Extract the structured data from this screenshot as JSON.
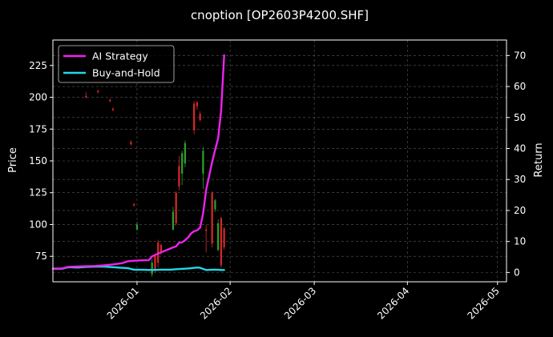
{
  "chart_data": {
    "type": "line",
    "title": "cnoption [OP2603P4200.SHF]",
    "ylabel": "Price",
    "y2label": "Return",
    "ylim": [
      55,
      245
    ],
    "y2lim": [
      -3,
      75
    ],
    "yticks": [
      75,
      100,
      125,
      150,
      175,
      200,
      225
    ],
    "y2ticks": [
      0,
      10,
      20,
      30,
      40,
      50,
      60,
      70
    ],
    "xlim": [
      "2025-12-04",
      "2026-05-04"
    ],
    "xticks": [
      "2026-01",
      "2026-02",
      "2026-03",
      "2026-04",
      "2026-05"
    ],
    "grid": true,
    "legend_position": "top-left",
    "colors": {
      "background": "#000000",
      "up": "#2ca02c",
      "down": "#d62728",
      "ai": "#ee22ee",
      "bh": "#22d8e8",
      "grid": "#5a5a5a"
    },
    "candles": [
      {
        "date": "2025-12-15",
        "open": 201,
        "high": 204,
        "low": 199,
        "close": 200
      },
      {
        "date": "2025-12-19",
        "open": 205,
        "high": 206,
        "low": 203,
        "close": 204
      },
      {
        "date": "2025-12-23",
        "open": 198,
        "high": 199,
        "low": 196,
        "close": 197
      },
      {
        "date": "2025-12-24",
        "open": 191,
        "high": 192,
        "low": 189,
        "close": 190
      },
      {
        "date": "2025-12-30",
        "open": 165,
        "high": 166,
        "low": 162,
        "close": 163
      },
      {
        "date": "2025-12-31",
        "open": 116,
        "high": 117,
        "low": 114,
        "close": 115
      },
      {
        "date": "2026-01-01",
        "open": 96,
        "high": 102,
        "low": 95,
        "close": 100
      },
      {
        "date": "2026-01-06",
        "open": 61,
        "high": 73,
        "low": 59,
        "close": 70
      },
      {
        "date": "2026-01-07",
        "open": 75,
        "high": 76,
        "low": 62,
        "close": 64
      },
      {
        "date": "2026-01-08",
        "open": 86,
        "high": 88,
        "low": 66,
        "close": 70
      },
      {
        "date": "2026-01-09",
        "open": 84,
        "high": 85,
        "low": 76,
        "close": 78
      },
      {
        "date": "2026-01-13",
        "open": 96,
        "high": 114,
        "low": 95,
        "close": 110
      },
      {
        "date": "2026-01-14",
        "open": 125,
        "high": 126,
        "low": 99,
        "close": 101
      },
      {
        "date": "2026-01-15",
        "open": 146,
        "high": 154,
        "low": 127,
        "close": 130
      },
      {
        "date": "2026-01-16",
        "open": 140,
        "high": 158,
        "low": 131,
        "close": 156
      },
      {
        "date": "2026-01-17",
        "open": 148,
        "high": 166,
        "low": 145,
        "close": 164
      },
      {
        "date": "2026-01-20",
        "open": 195,
        "high": 197,
        "low": 171,
        "close": 174
      },
      {
        "date": "2026-01-21",
        "open": 196,
        "high": 197,
        "low": 190,
        "close": 193
      },
      {
        "date": "2026-01-22",
        "open": 187,
        "high": 189,
        "low": 181,
        "close": 182
      },
      {
        "date": "2026-01-23",
        "open": 140,
        "high": 161,
        "low": 128,
        "close": 158
      },
      {
        "date": "2026-01-24",
        "open": 96,
        "high": 100,
        "low": 78,
        "close": 95
      },
      {
        "date": "2026-01-26",
        "open": 125,
        "high": 126,
        "low": 82,
        "close": 85
      },
      {
        "date": "2026-01-27",
        "open": 112,
        "high": 120,
        "low": 110,
        "close": 119
      },
      {
        "date": "2026-01-28",
        "open": 80,
        "high": 104,
        "low": 79,
        "close": 101
      },
      {
        "date": "2026-01-29",
        "open": 105,
        "high": 106,
        "low": 66,
        "close": 68
      },
      {
        "date": "2026-01-30",
        "open": 97,
        "high": 98,
        "low": 80,
        "close": 82
      }
    ],
    "series": [
      {
        "name": "AI Strategy",
        "x": [
          "2025-12-04",
          "2025-12-07",
          "2025-12-09",
          "2025-12-12",
          "2025-12-15",
          "2025-12-18",
          "2025-12-21",
          "2025-12-24",
          "2025-12-27",
          "2025-12-29",
          "2025-12-31",
          "2026-01-02",
          "2026-01-05",
          "2026-01-06",
          "2026-01-08",
          "2026-01-10",
          "2026-01-12",
          "2026-01-13",
          "2026-01-14",
          "2026-01-15",
          "2026-01-16",
          "2026-01-17",
          "2026-01-18",
          "2026-01-19",
          "2026-01-20",
          "2026-01-21",
          "2026-01-22",
          "2026-01-23",
          "2026-01-24",
          "2026-01-25",
          "2026-01-26",
          "2026-01-27",
          "2026-01-28",
          "2026-01-29",
          "2026-01-30"
        ],
        "values": [
          1.3,
          1.3,
          1.8,
          1.9,
          2.0,
          2.1,
          2.3,
          2.6,
          3.0,
          3.6,
          3.8,
          3.9,
          4.0,
          5.2,
          6.1,
          6.9,
          7.7,
          8.1,
          8.4,
          9.6,
          9.7,
          10.4,
          11.3,
          12.6,
          13.3,
          13.6,
          14.5,
          19.0,
          26.6,
          31.1,
          35.7,
          39.5,
          43.3,
          52.2,
          70.1
        ]
      },
      {
        "name": "Buy-and-Hold",
        "x": [
          "2025-12-04",
          "2025-12-07",
          "2025-12-09",
          "2025-12-12",
          "2025-12-15",
          "2025-12-18",
          "2025-12-21",
          "2025-12-24",
          "2025-12-27",
          "2025-12-29",
          "2025-12-31",
          "2026-01-02",
          "2026-01-06",
          "2026-01-09",
          "2026-01-12",
          "2026-01-15",
          "2026-01-18",
          "2026-01-21",
          "2026-01-22",
          "2026-01-24",
          "2026-01-26",
          "2026-01-28",
          "2026-01-29",
          "2026-01-30"
        ],
        "values": [
          1.2,
          1.2,
          1.7,
          1.6,
          1.8,
          1.9,
          1.9,
          1.7,
          1.5,
          1.4,
          0.9,
          0.9,
          0.8,
          0.9,
          0.9,
          1.1,
          1.3,
          1.6,
          1.5,
          0.8,
          0.9,
          0.9,
          0.8,
          0.8
        ]
      }
    ]
  }
}
